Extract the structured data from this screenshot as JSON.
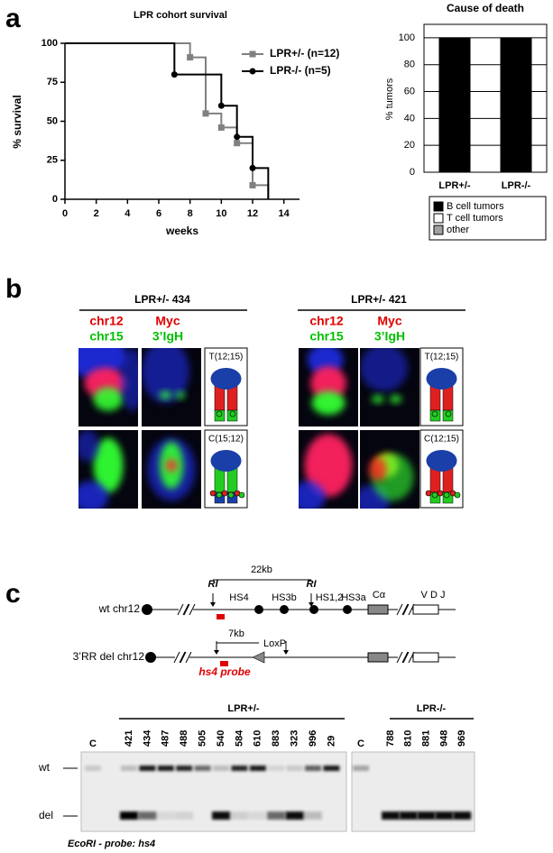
{
  "panel_labels": [
    "a",
    "b",
    "c"
  ],
  "chart_data": [
    {
      "type": "line",
      "step": true,
      "title": "LPR cohort survival",
      "x_label": "weeks",
      "y_label": "% survival",
      "xlim": [
        0,
        15
      ],
      "xticks": [
        0,
        2,
        4,
        6,
        8,
        10,
        12,
        14
      ],
      "ylim": [
        0,
        100
      ],
      "yticks": [
        0,
        25,
        50,
        75,
        100
      ],
      "legend": "upper right",
      "series": [
        {
          "name": "LPR+/- (n=12)",
          "color": "#808080",
          "marker": "square",
          "x": [
            0,
            8,
            9,
            10,
            11,
            12,
            13
          ],
          "values": [
            100,
            91,
            55,
            46,
            36,
            9,
            0
          ]
        },
        {
          "name": "LPR-/- (n=5)",
          "color": "#000000",
          "marker": "circle",
          "x": [
            0,
            7,
            10,
            11,
            12,
            13
          ],
          "values": [
            100,
            80,
            60,
            40,
            20,
            0
          ]
        }
      ]
    },
    {
      "type": "bar",
      "stacked": true,
      "title": "Cause of death",
      "y_label": "% tumors",
      "categories": [
        "LPR+/-",
        "LPR-/-"
      ],
      "ylim": [
        0,
        110
      ],
      "yticks": [
        0,
        20,
        40,
        60,
        80,
        100
      ],
      "grid": true,
      "legend": "bottom",
      "series": [
        {
          "name": "B cell tumors",
          "color": "#000000",
          "values": [
            100,
            100
          ]
        },
        {
          "name": "T cell tumors",
          "color": "#ffffff",
          "values": [
            0,
            0
          ]
        },
        {
          "name": "other",
          "color": "#a0a0a0",
          "values": [
            0,
            0
          ]
        }
      ]
    }
  ],
  "fish": {
    "groups": [
      {
        "title": "LPR+/- 434",
        "probes": [
          {
            "red": "chr12",
            "green": "chr15"
          },
          {
            "red": "Myc",
            "green": "3’IgH"
          }
        ],
        "rows": [
          "T(12;15)",
          "C(15;12)"
        ]
      },
      {
        "title": "LPR+/- 421",
        "probes": [
          {
            "red": "chr12",
            "green": "chr15"
          },
          {
            "red": "Myc",
            "green": "3’IgH"
          }
        ],
        "rows": [
          "T(12;15)",
          "C(12;15)"
        ]
      }
    ]
  },
  "map": {
    "wt_label": "wt chr12",
    "del_label": "3’RR del chr12",
    "ri": [
      "RI",
      "RI"
    ],
    "kb22": "22kb",
    "hs": [
      "HS4",
      "HS3b",
      "HS1,2",
      "HS3a"
    ],
    "ca": "Cα",
    "vdj": "V D J",
    "kb7": "7kb",
    "loxp": "LoxP",
    "probe": "hs4 probe"
  },
  "gel": {
    "groups": [
      {
        "title": "LPR+/-",
        "lanes": [
          "C",
          "421",
          "434",
          "487",
          "488",
          "505",
          "540",
          "584",
          "610",
          "883",
          "323",
          "996",
          "29"
        ]
      },
      {
        "title": "LPR-/-",
        "lanes": [
          "C",
          "788",
          "810",
          "881",
          "948",
          "969"
        ]
      }
    ],
    "bands": [
      "wt",
      "del"
    ],
    "caption": "EcoRI - probe: hs4"
  }
}
